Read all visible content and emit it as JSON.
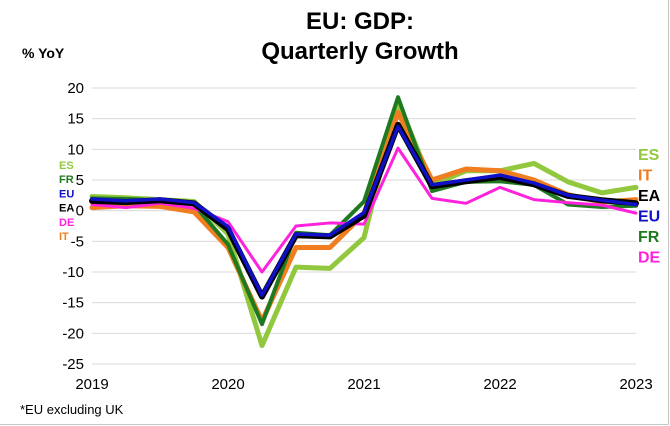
{
  "chart_data": {
    "type": "line",
    "title_line1": "EU: GDP:",
    "title_line2": "Quarterly Growth",
    "ylabel": "% YoY",
    "footnote": "*EU excluding UK",
    "ylim": [
      -25,
      20
    ],
    "yticks": [
      20,
      15,
      10,
      5,
      0,
      -5,
      -10,
      -15,
      -20,
      -25
    ],
    "xlim": [
      2019,
      2023
    ],
    "xticks": [
      2019,
      2020,
      2021,
      2022,
      2023
    ],
    "grid": true,
    "x": [
      2019.0,
      2019.25,
      2019.5,
      2019.75,
      2020.0,
      2020.25,
      2020.5,
      2020.75,
      2021.0,
      2021.25,
      2021.5,
      2021.75,
      2022.0,
      2022.25,
      2022.5,
      2022.75,
      2023.0
    ],
    "series": [
      {
        "name": "ES",
        "color": "#92c83e",
        "values": [
          2.3,
          2.1,
          1.8,
          1.5,
          -3.8,
          -22.0,
          -9.2,
          -9.4,
          -4.4,
          17.8,
          4.2,
          6.5,
          6.5,
          7.7,
          4.7,
          2.9,
          3.8
        ]
      },
      {
        "name": "IT",
        "color": "#f07d1f",
        "values": [
          0.5,
          0.8,
          0.7,
          -0.2,
          -6.0,
          -18.0,
          -6.0,
          -6.0,
          -0.5,
          16.0,
          5.0,
          6.8,
          6.5,
          5.0,
          2.6,
          1.4,
          1.8
        ]
      },
      {
        "name": "FR",
        "color": "#1f7a1f",
        "values": [
          2.0,
          1.9,
          1.7,
          1.0,
          -5.5,
          -18.5,
          -3.6,
          -4.0,
          1.5,
          18.5,
          3.2,
          4.7,
          4.8,
          4.2,
          1.0,
          0.6,
          0.8
        ]
      },
      {
        "name": "DE",
        "color": "#ff22dd",
        "values": [
          1.0,
          0.5,
          1.2,
          0.4,
          -1.8,
          -10.0,
          -2.5,
          -2.0,
          -2.2,
          10.2,
          2.0,
          1.2,
          3.8,
          1.8,
          1.3,
          0.9,
          -0.4
        ]
      },
      {
        "name": "EA",
        "color": "#000000",
        "values": [
          1.6,
          1.4,
          1.7,
          1.2,
          -3.0,
          -14.0,
          -4.0,
          -4.2,
          -0.8,
          14.0,
          4.0,
          4.8,
          5.5,
          4.3,
          2.4,
          1.7,
          1.2
        ]
      },
      {
        "name": "EU",
        "color": "#1010c8",
        "values": [
          1.9,
          1.6,
          1.9,
          1.3,
          -2.6,
          -13.8,
          -3.8,
          -4.0,
          -0.3,
          13.7,
          4.2,
          5.0,
          5.8,
          4.5,
          2.5,
          1.7,
          1.0
        ]
      }
    ],
    "right_labels": [
      {
        "text": "ES",
        "color": "#92c83e"
      },
      {
        "text": "IT",
        "color": "#f07d1f"
      },
      {
        "text": "EA",
        "color": "#000000"
      },
      {
        "text": "EU",
        "color": "#1010c8"
      },
      {
        "text": "FR",
        "color": "#1f7a1f"
      },
      {
        "text": "DE",
        "color": "#ff22dd"
      }
    ],
    "left_labels": [
      {
        "text": "ES",
        "color": "#92c83e"
      },
      {
        "text": "FR",
        "color": "#1f7a1f"
      },
      {
        "text": "EU",
        "color": "#1010c8"
      },
      {
        "text": "EA",
        "color": "#000000"
      },
      {
        "text": "DE",
        "color": "#ff22dd"
      },
      {
        "text": "IT",
        "color": "#f07d1f"
      }
    ]
  }
}
